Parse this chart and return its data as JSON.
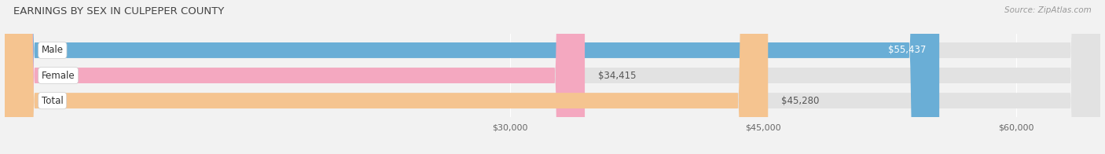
{
  "title": "EARNINGS BY SEX IN CULPEPER COUNTY",
  "source": "Source: ZipAtlas.com",
  "categories": [
    "Male",
    "Female",
    "Total"
  ],
  "values": [
    55437,
    34415,
    45280
  ],
  "bar_colors": [
    "#6aaed6",
    "#f4a8c0",
    "#f5c490"
  ],
  "value_labels": [
    "$55,437",
    "$34,415",
    "$45,280"
  ],
  "value_label_inside": [
    true,
    false,
    false
  ],
  "xmin": 0,
  "xmax": 65000,
  "xticks": [
    30000,
    45000,
    60000
  ],
  "xtick_labels": [
    "$30,000",
    "$45,000",
    "$60,000"
  ],
  "background_color": "#f2f2f2",
  "bar_bg_color": "#e2e2e2",
  "title_fontsize": 9.5,
  "source_fontsize": 7.5,
  "label_fontsize": 8.5,
  "value_fontsize": 8.5,
  "tick_fontsize": 8,
  "bar_height": 0.62
}
